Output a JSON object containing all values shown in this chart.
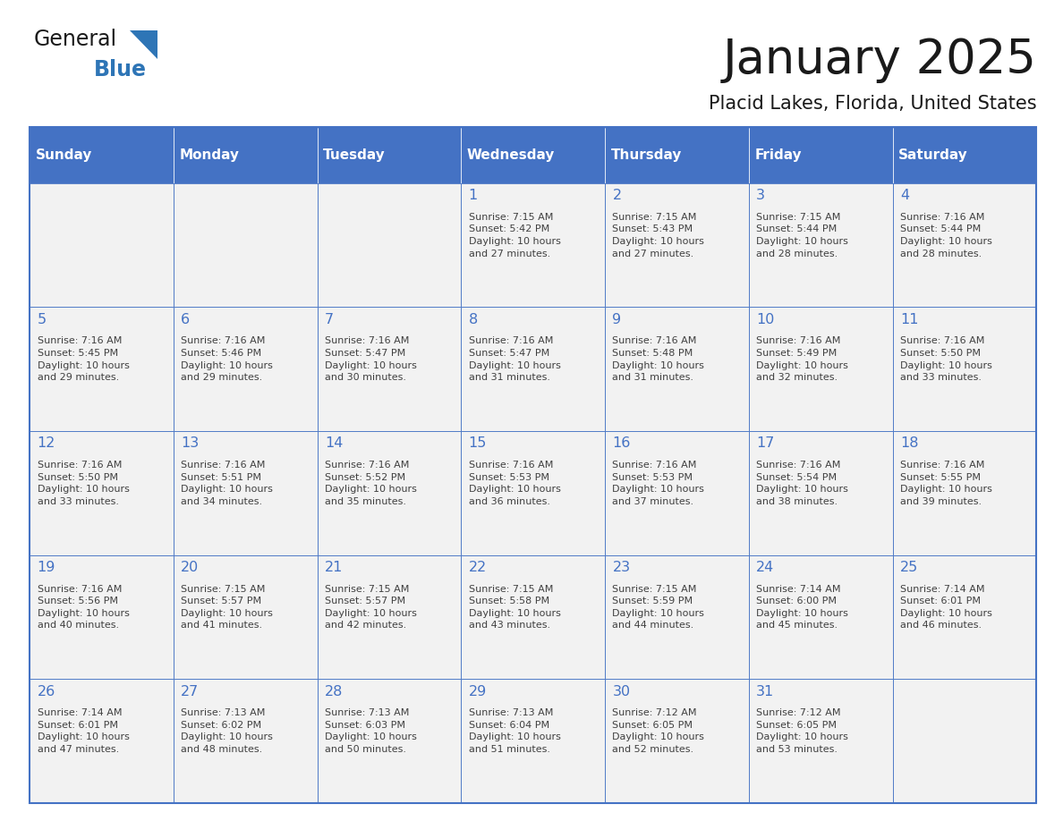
{
  "title": "January 2025",
  "subtitle": "Placid Lakes, Florida, United States",
  "days_of_week": [
    "Sunday",
    "Monday",
    "Tuesday",
    "Wednesday",
    "Thursday",
    "Friday",
    "Saturday"
  ],
  "header_bg": "#4472C4",
  "header_text": "#FFFFFF",
  "cell_bg": "#F2F2F2",
  "border_color": "#4472C4",
  "day_number_color": "#4472C4",
  "cell_text_color": "#404040",
  "title_color": "#1a1a1a",
  "subtitle_color": "#1a1a1a",
  "logo_general_color": "#1a1a1a",
  "logo_blue_color": "#2E75B6",
  "logo_triangle_color": "#2E75B6",
  "calendar_data": [
    [
      {
        "day": null,
        "text": ""
      },
      {
        "day": null,
        "text": ""
      },
      {
        "day": null,
        "text": ""
      },
      {
        "day": 1,
        "text": "Sunrise: 7:15 AM\nSunset: 5:42 PM\nDaylight: 10 hours\nand 27 minutes."
      },
      {
        "day": 2,
        "text": "Sunrise: 7:15 AM\nSunset: 5:43 PM\nDaylight: 10 hours\nand 27 minutes."
      },
      {
        "day": 3,
        "text": "Sunrise: 7:15 AM\nSunset: 5:44 PM\nDaylight: 10 hours\nand 28 minutes."
      },
      {
        "day": 4,
        "text": "Sunrise: 7:16 AM\nSunset: 5:44 PM\nDaylight: 10 hours\nand 28 minutes."
      }
    ],
    [
      {
        "day": 5,
        "text": "Sunrise: 7:16 AM\nSunset: 5:45 PM\nDaylight: 10 hours\nand 29 minutes."
      },
      {
        "day": 6,
        "text": "Sunrise: 7:16 AM\nSunset: 5:46 PM\nDaylight: 10 hours\nand 29 minutes."
      },
      {
        "day": 7,
        "text": "Sunrise: 7:16 AM\nSunset: 5:47 PM\nDaylight: 10 hours\nand 30 minutes."
      },
      {
        "day": 8,
        "text": "Sunrise: 7:16 AM\nSunset: 5:47 PM\nDaylight: 10 hours\nand 31 minutes."
      },
      {
        "day": 9,
        "text": "Sunrise: 7:16 AM\nSunset: 5:48 PM\nDaylight: 10 hours\nand 31 minutes."
      },
      {
        "day": 10,
        "text": "Sunrise: 7:16 AM\nSunset: 5:49 PM\nDaylight: 10 hours\nand 32 minutes."
      },
      {
        "day": 11,
        "text": "Sunrise: 7:16 AM\nSunset: 5:50 PM\nDaylight: 10 hours\nand 33 minutes."
      }
    ],
    [
      {
        "day": 12,
        "text": "Sunrise: 7:16 AM\nSunset: 5:50 PM\nDaylight: 10 hours\nand 33 minutes."
      },
      {
        "day": 13,
        "text": "Sunrise: 7:16 AM\nSunset: 5:51 PM\nDaylight: 10 hours\nand 34 minutes."
      },
      {
        "day": 14,
        "text": "Sunrise: 7:16 AM\nSunset: 5:52 PM\nDaylight: 10 hours\nand 35 minutes."
      },
      {
        "day": 15,
        "text": "Sunrise: 7:16 AM\nSunset: 5:53 PM\nDaylight: 10 hours\nand 36 minutes."
      },
      {
        "day": 16,
        "text": "Sunrise: 7:16 AM\nSunset: 5:53 PM\nDaylight: 10 hours\nand 37 minutes."
      },
      {
        "day": 17,
        "text": "Sunrise: 7:16 AM\nSunset: 5:54 PM\nDaylight: 10 hours\nand 38 minutes."
      },
      {
        "day": 18,
        "text": "Sunrise: 7:16 AM\nSunset: 5:55 PM\nDaylight: 10 hours\nand 39 minutes."
      }
    ],
    [
      {
        "day": 19,
        "text": "Sunrise: 7:16 AM\nSunset: 5:56 PM\nDaylight: 10 hours\nand 40 minutes."
      },
      {
        "day": 20,
        "text": "Sunrise: 7:15 AM\nSunset: 5:57 PM\nDaylight: 10 hours\nand 41 minutes."
      },
      {
        "day": 21,
        "text": "Sunrise: 7:15 AM\nSunset: 5:57 PM\nDaylight: 10 hours\nand 42 minutes."
      },
      {
        "day": 22,
        "text": "Sunrise: 7:15 AM\nSunset: 5:58 PM\nDaylight: 10 hours\nand 43 minutes."
      },
      {
        "day": 23,
        "text": "Sunrise: 7:15 AM\nSunset: 5:59 PM\nDaylight: 10 hours\nand 44 minutes."
      },
      {
        "day": 24,
        "text": "Sunrise: 7:14 AM\nSunset: 6:00 PM\nDaylight: 10 hours\nand 45 minutes."
      },
      {
        "day": 25,
        "text": "Sunrise: 7:14 AM\nSunset: 6:01 PM\nDaylight: 10 hours\nand 46 minutes."
      }
    ],
    [
      {
        "day": 26,
        "text": "Sunrise: 7:14 AM\nSunset: 6:01 PM\nDaylight: 10 hours\nand 47 minutes."
      },
      {
        "day": 27,
        "text": "Sunrise: 7:13 AM\nSunset: 6:02 PM\nDaylight: 10 hours\nand 48 minutes."
      },
      {
        "day": 28,
        "text": "Sunrise: 7:13 AM\nSunset: 6:03 PM\nDaylight: 10 hours\nand 50 minutes."
      },
      {
        "day": 29,
        "text": "Sunrise: 7:13 AM\nSunset: 6:04 PM\nDaylight: 10 hours\nand 51 minutes."
      },
      {
        "day": 30,
        "text": "Sunrise: 7:12 AM\nSunset: 6:05 PM\nDaylight: 10 hours\nand 52 minutes."
      },
      {
        "day": 31,
        "text": "Sunrise: 7:12 AM\nSunset: 6:05 PM\nDaylight: 10 hours\nand 53 minutes."
      },
      {
        "day": null,
        "text": ""
      }
    ]
  ]
}
